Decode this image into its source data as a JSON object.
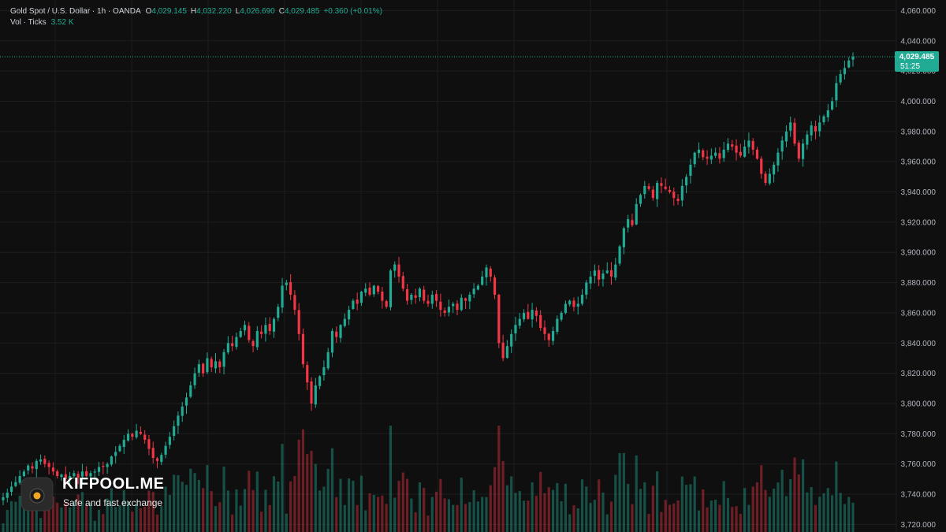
{
  "legend": {
    "symbol": "Gold Spot / U.S. Dollar · 1h · OANDA",
    "open_label": "O",
    "open": "4,029.145",
    "high_label": "H",
    "high": "4,032.220",
    "low_label": "L",
    "low": "4,026.690",
    "close_label": "C",
    "close": "4,029.485",
    "change": "+0.360 (+0.01%)",
    "volume_label": "Vol · Ticks",
    "volume": "3.52 K"
  },
  "price_tag": {
    "price": "4,029.485",
    "countdown": "51:25"
  },
  "logo": {
    "name": "KIFPOOL.ME",
    "tagline": "Safe and fast exchange"
  },
  "colors": {
    "up": "#22ab94",
    "down": "#f23645",
    "background": "#0f0f0f",
    "grid": "#1e1e1e"
  },
  "chart_data": {
    "type": "candlestick",
    "interval": "1h",
    "y_axis_ticks": [
      "4,060.000",
      "4,040.000",
      "4,020.000",
      "4,000.000",
      "3,980.000",
      "3,960.000",
      "3,940.000",
      "3,920.000",
      "3,900.000",
      "3,880.000",
      "3,860.000",
      "3,840.000",
      "3,820.000",
      "3,800.000",
      "3,780.000",
      "3,760.000",
      "3,740.000",
      "3,720.000"
    ],
    "y_tick_values": [
      4060,
      4040,
      4020,
      4000,
      3980,
      3960,
      3940,
      3920,
      3900,
      3880,
      3860,
      3840,
      3820,
      3800,
      3780,
      3760,
      3740,
      3720
    ],
    "ylim": [
      3715,
      4067
    ],
    "last_price": 4029.485,
    "closes": [
      3738,
      3741,
      3745,
      3748,
      3752,
      3755,
      3759,
      3757,
      3762,
      3763,
      3760,
      3758,
      3755,
      3752,
      3753,
      3750,
      3752,
      3754,
      3751,
      3755,
      3752,
      3754,
      3755,
      3758,
      3758,
      3760,
      3765,
      3768,
      3772,
      3776,
      3780,
      3778,
      3782,
      3780,
      3776,
      3770,
      3764,
      3762,
      3766,
      3772,
      3778,
      3785,
      3792,
      3798,
      3804,
      3812,
      3820,
      3826,
      3820,
      3830,
      3824,
      3828,
      3824,
      3834,
      3840,
      3838,
      3844,
      3848,
      3852,
      3842,
      3838,
      3848,
      3846,
      3852,
      3848,
      3856,
      3864,
      3878,
      3880,
      3872,
      3862,
      3846,
      3826,
      3814,
      3800,
      3812,
      3818,
      3824,
      3834,
      3848,
      3844,
      3852,
      3856,
      3862,
      3868,
      3866,
      3874,
      3876,
      3872,
      3878,
      3874,
      3868,
      3864,
      3888,
      3892,
      3884,
      3876,
      3868,
      3872,
      3870,
      3876,
      3868,
      3866,
      3872,
      3868,
      3862,
      3860,
      3864,
      3866,
      3862,
      3870,
      3868,
      3872,
      3876,
      3878,
      3884,
      3890,
      3884,
      3872,
      3840,
      3830,
      3838,
      3846,
      3852,
      3856,
      3860,
      3856,
      3862,
      3858,
      3850,
      3846,
      3842,
      3848,
      3856,
      3860,
      3866,
      3868,
      3864,
      3866,
      3872,
      3880,
      3884,
      3888,
      3882,
      3886,
      3888,
      3884,
      3892,
      3904,
      3916,
      3922,
      3918,
      3932,
      3938,
      3944,
      3942,
      3936,
      3946,
      3944,
      3942,
      3940,
      3936,
      3934,
      3944,
      3950,
      3958,
      3966,
      3968,
      3963,
      3962,
      3964,
      3966,
      3962,
      3968,
      3972,
      3970,
      3966,
      3964,
      3970,
      3974,
      3968,
      3962,
      3952,
      3946,
      3952,
      3958,
      3966,
      3974,
      3980,
      3986,
      3972,
      3962,
      3972,
      3978,
      3984,
      3980,
      3986,
      3990,
      3994,
      4000,
      4012,
      4018,
      4022,
      4027,
      4029.485
    ],
    "volume_bars": 205
  }
}
